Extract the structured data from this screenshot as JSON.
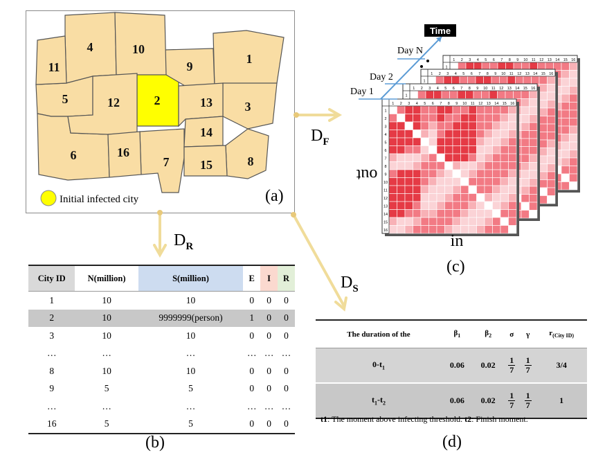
{
  "map": {
    "cities": [
      "1",
      "2",
      "3",
      "4",
      "5",
      "6",
      "7",
      "8",
      "9",
      "10",
      "11",
      "12",
      "13",
      "14",
      "15",
      "16"
    ],
    "highlight_city": "2",
    "fill_color": "#f9dda4",
    "highlight_color": "#ffff00",
    "legend_label": "Initial infected city",
    "panel_label": "(a)"
  },
  "arrows": {
    "df": "D",
    "df_sub": "F",
    "dr": "D",
    "dr_sub": "R",
    "ds": "D",
    "ds_sub": "S",
    "color": "#f0dc9a"
  },
  "matrices": {
    "time_label": "Time",
    "days": [
      "Day N",
      "Day 2",
      "Day 1"
    ],
    "size": 16,
    "axis_out": "out",
    "axis_in": "in",
    "panel_label": "(c)",
    "colors": [
      "#e53a45",
      "#f27a84",
      "#f8b1b6",
      "#fbd3d6",
      "#ffffff"
    ]
  },
  "table_b": {
    "headers": [
      "City ID",
      "N(million)",
      "S(million)",
      "E",
      "I",
      "R"
    ],
    "header_colors": [
      "#d9d9d9",
      "#ffffff",
      "#cddcf0",
      "#ffffff",
      "#fbd9cf",
      "#e2efd8"
    ],
    "rows": [
      [
        "1",
        "10",
        "10",
        "0",
        "0",
        "0"
      ],
      [
        "2",
        "10",
        "9999999(person)",
        "1",
        "0",
        "0"
      ],
      [
        "3",
        "10",
        "10",
        "0",
        "0",
        "0"
      ],
      [
        "…",
        "…",
        "…",
        "…",
        "…",
        "…"
      ],
      [
        "8",
        "10",
        "10",
        "0",
        "0",
        "0"
      ],
      [
        "9",
        "5",
        "5",
        "0",
        "0",
        "0"
      ],
      [
        "…",
        "…",
        "…",
        "…",
        "…",
        "…"
      ],
      [
        "16",
        "5",
        "5",
        "0",
        "0",
        "0"
      ]
    ],
    "highlight_row": 1,
    "panel_label": "(b)"
  },
  "table_d": {
    "headers": [
      "The duration of the",
      "β",
      "β",
      "σ",
      "γ",
      "r"
    ],
    "header_subs": [
      "",
      "1",
      "2",
      "",
      "",
      "(City ID)"
    ],
    "rows": [
      {
        "period": "0-t",
        "period_sub": "1",
        "b1": "0.06",
        "b2": "0.02",
        "sigma_num": "1",
        "sigma_den": "7",
        "gamma_num": "1",
        "gamma_den": "7",
        "r": "3/4"
      },
      {
        "period": "t",
        "period_sub": "1",
        "period_mid": "-t",
        "period_sub2": "2",
        "b1": "0.06",
        "b2": "0.02",
        "sigma_num": "1",
        "sigma_den": "7",
        "gamma_num": "1",
        "gamma_den": "7",
        "r": "1"
      }
    ],
    "footnote": {
      "t1": "t1",
      "t1_text": ": The moment above infecting threshold. ",
      "t2": "t2",
      "t2_text": ": Finish moment."
    },
    "panel_label": "(d)"
  }
}
